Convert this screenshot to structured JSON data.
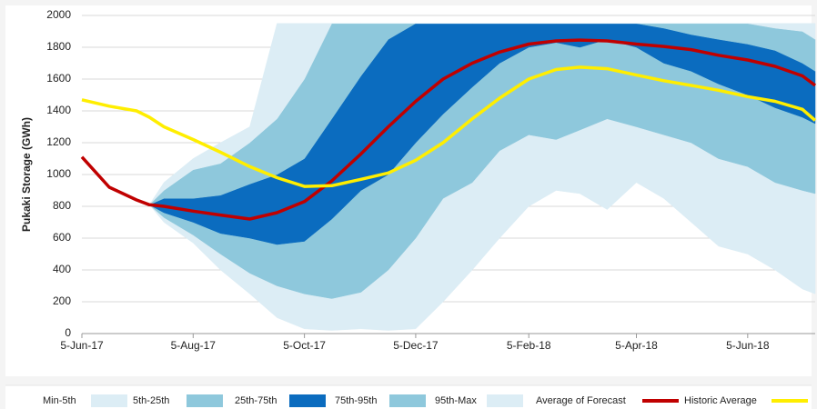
{
  "chart_data": {
    "type": "fan",
    "y_label": "Pukaki Storage (GWh)",
    "x": [
      "2017-06-05",
      "2017-06-20",
      "2017-07-05",
      "2017-07-12",
      "2017-07-20",
      "2017-08-05",
      "2017-08-20",
      "2017-09-05",
      "2017-09-20",
      "2017-10-05",
      "2017-10-20",
      "2017-11-05",
      "2017-11-20",
      "2017-12-05",
      "2017-12-20",
      "2018-01-05",
      "2018-01-20",
      "2018-02-05",
      "2018-02-20",
      "2018-03-05",
      "2018-03-20",
      "2018-04-05",
      "2018-04-20",
      "2018-05-05",
      "2018-05-20",
      "2018-06-05",
      "2018-06-20",
      "2018-07-05",
      "2018-07-12"
    ],
    "xlim": [
      "2017-06-05",
      "2018-07-12"
    ],
    "xticks": [
      {
        "value": "2017-06-05",
        "label": "5-Jun-17"
      },
      {
        "value": "2017-08-05",
        "label": "5-Aug-17"
      },
      {
        "value": "2017-10-05",
        "label": "5-Oct-17"
      },
      {
        "value": "2017-12-05",
        "label": "5-Dec-17"
      },
      {
        "value": "2018-02-05",
        "label": "5-Feb-18"
      },
      {
        "value": "2018-04-05",
        "label": "5-Apr-18"
      },
      {
        "value": "2018-06-05",
        "label": "5-Jun-18"
      }
    ],
    "ylim": [
      0,
      2000
    ],
    "yticks": [
      0,
      200,
      400,
      600,
      800,
      1000,
      1200,
      1400,
      1600,
      1800,
      2000
    ],
    "grid": true,
    "bands": [
      {
        "name": "Min-5th",
        "color": "#dcedf5",
        "lower": [
          null,
          null,
          null,
          810,
          700,
          570,
          400,
          250,
          100,
          30,
          20,
          30,
          20,
          30,
          200,
          400,
          600,
          800,
          900,
          880,
          780,
          950,
          850,
          700,
          550,
          500,
          400,
          280,
          250
        ],
        "upper": [
          null,
          null,
          null,
          810,
          730,
          620,
          500,
          380,
          300,
          250,
          220,
          260,
          400,
          600,
          850,
          950,
          1150,
          1250,
          1220,
          1280,
          1350,
          1300,
          1250,
          1200,
          1100,
          1050,
          950,
          900,
          880
        ]
      },
      {
        "name": "5th-25th",
        "color": "#8ec8dc",
        "lower": [
          null,
          null,
          null,
          810,
          730,
          620,
          500,
          380,
          300,
          250,
          220,
          260,
          400,
          600,
          850,
          950,
          1150,
          1250,
          1220,
          1280,
          1350,
          1300,
          1250,
          1200,
          1100,
          1050,
          950,
          900,
          880
        ],
        "upper": [
          null,
          null,
          null,
          810,
          760,
          700,
          630,
          600,
          560,
          580,
          720,
          900,
          1000,
          1200,
          1380,
          1550,
          1700,
          1800,
          1830,
          1800,
          1850,
          1800,
          1700,
          1650,
          1570,
          1500,
          1420,
          1360,
          1320
        ]
      },
      {
        "name": "25th-75th",
        "color": "#0b6cbf",
        "lower": [
          null,
          null,
          null,
          810,
          760,
          700,
          630,
          600,
          560,
          580,
          720,
          900,
          1000,
          1200,
          1380,
          1550,
          1700,
          1800,
          1830,
          1800,
          1850,
          1800,
          1700,
          1650,
          1570,
          1500,
          1420,
          1360,
          1320
        ],
        "upper": [
          null,
          null,
          null,
          810,
          850,
          850,
          870,
          940,
          1000,
          1100,
          1350,
          1620,
          1850,
          1950,
          1950,
          1950,
          1950,
          1950,
          1950,
          1950,
          1950,
          1950,
          1920,
          1880,
          1850,
          1820,
          1780,
          1700,
          1650
        ]
      },
      {
        "name": "75th-95th",
        "color": "#8ec8dc",
        "lower": [
          null,
          null,
          null,
          810,
          850,
          850,
          870,
          940,
          1000,
          1100,
          1350,
          1620,
          1850,
          1950,
          1950,
          1950,
          1950,
          1950,
          1950,
          1950,
          1950,
          1950,
          1920,
          1880,
          1850,
          1820,
          1780,
          1700,
          1650
        ],
        "upper": [
          null,
          null,
          null,
          810,
          900,
          1030,
          1070,
          1200,
          1350,
          1600,
          1950,
          1950,
          1950,
          1950,
          1950,
          1950,
          1950,
          1950,
          1950,
          1950,
          1950,
          1950,
          1950,
          1950,
          1950,
          1950,
          1920,
          1900,
          1850
        ]
      },
      {
        "name": "95th-Max",
        "color": "#dcedf5",
        "lower": [
          null,
          null,
          null,
          810,
          900,
          1030,
          1070,
          1200,
          1350,
          1600,
          1950,
          1950,
          1950,
          1950,
          1950,
          1950,
          1950,
          1950,
          1950,
          1950,
          1950,
          1950,
          1950,
          1950,
          1950,
          1950,
          1920,
          1900,
          1850
        ],
        "upper": [
          null,
          null,
          null,
          810,
          950,
          1100,
          1200,
          1300,
          1950,
          1950,
          1950,
          1950,
          1950,
          1950,
          1950,
          1950,
          1950,
          1950,
          1950,
          1950,
          1950,
          1950,
          1950,
          1950,
          1950,
          1950,
          1950,
          1950,
          1950
        ]
      }
    ],
    "series": [
      {
        "name": "Average of Forecast",
        "color": "#c00000",
        "values": [
          1110,
          920,
          840,
          810,
          800,
          770,
          745,
          720,
          760,
          830,
          960,
          1130,
          1300,
          1460,
          1600,
          1700,
          1770,
          1820,
          1840,
          1845,
          1840,
          1820,
          1805,
          1785,
          1750,
          1720,
          1680,
          1620,
          1560
        ]
      },
      {
        "name": "Historic Average",
        "color": "#ffee00",
        "values": [
          1470,
          1430,
          1400,
          1360,
          1300,
          1220,
          1140,
          1050,
          980,
          925,
          930,
          970,
          1010,
          1090,
          1200,
          1350,
          1480,
          1600,
          1660,
          1675,
          1665,
          1625,
          1590,
          1560,
          1530,
          1490,
          1460,
          1410,
          1340
        ]
      }
    ]
  }
}
